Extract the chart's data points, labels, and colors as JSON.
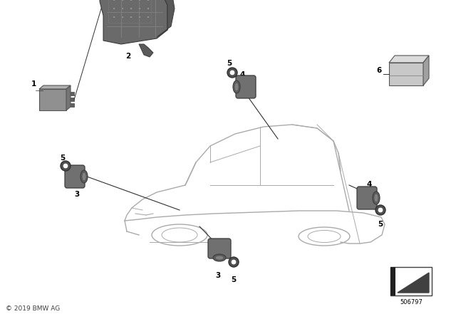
{
  "background_color": "#ffffff",
  "copyright_text": "© 2019 BMW AG",
  "part_number": "506797",
  "fig_width": 6.4,
  "fig_height": 4.48,
  "dpi": 100,
  "line_color": "#303030",
  "car_outline_color": "#aaaaaa",
  "part_gray": "#808080",
  "part_dark": "#555555",
  "part_light": "#b0b0b0",
  "label_fontsize": 7.5,
  "copyright_fontsize": 6.5
}
